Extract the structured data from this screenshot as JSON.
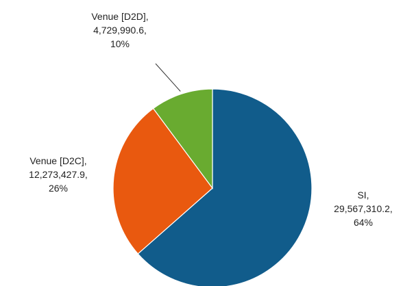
{
  "chart_data": {
    "type": "pie",
    "categories": [
      "SI",
      "Venue [D2C]",
      "Venue [D2D]"
    ],
    "values": [
      29567310.2,
      12273427.9,
      4729990.6
    ],
    "value_labels": [
      "29,567,310.2",
      "12,273,427.9",
      "4,729,990.6"
    ],
    "percent_labels": [
      "64%",
      "26%",
      "10%"
    ],
    "separator": ",",
    "colors": [
      "#115c8b",
      "#e9590f",
      "#69ab30"
    ]
  }
}
